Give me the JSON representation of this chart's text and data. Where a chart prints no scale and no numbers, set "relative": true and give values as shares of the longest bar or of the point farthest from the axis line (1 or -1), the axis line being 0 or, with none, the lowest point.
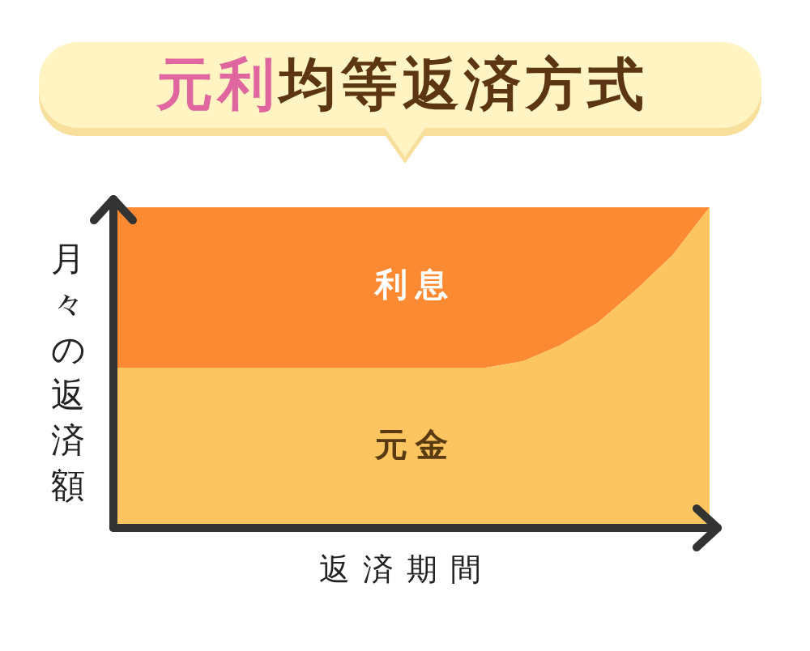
{
  "chart_data": {
    "type": "area",
    "title": "元利均等返済方式",
    "xlabel": "返済期間",
    "ylabel": "月々の返済額",
    "categories": [
      null,
      null,
      null,
      null,
      null,
      null,
      null,
      null,
      null,
      null,
      null,
      null,
      null,
      null,
      null,
      null,
      null
    ],
    "relative": true,
    "stacked": true,
    "series": [
      {
        "name": "元金",
        "color": "#fdc55f",
        "values": [
          0.5,
          0.5,
          0.5,
          0.5,
          0.5,
          0.5,
          0.5,
          0.5,
          0.5,
          0.5,
          0.5,
          0.52,
          0.57,
          0.64,
          0.74,
          0.85,
          1
        ]
      },
      {
        "name": "利息",
        "color": "#fb8a33",
        "values": [
          0.5,
          0.5,
          0.5,
          0.5,
          0.5,
          0.5,
          0.5,
          0.5,
          0.5,
          0.5,
          0.5,
          0.48,
          0.43,
          0.36,
          0.26,
          0.15,
          0
        ]
      }
    ]
  }
}
